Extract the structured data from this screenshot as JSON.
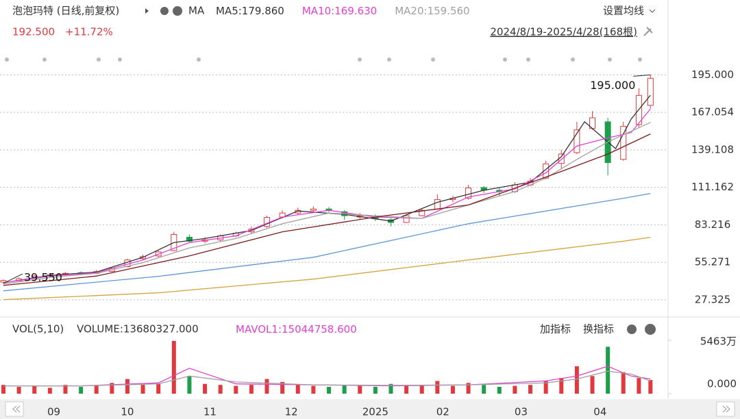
{
  "chart_data": {
    "type": "candlestick",
    "title": "泡泡玛特 (日线,前复权)",
    "ma_label": "MA",
    "price": "192.500",
    "change": "+11.72%",
    "range": "2024/8/19-2025/4/28(168根)",
    "settings": "设置均线",
    "xlim": [
      0,
      168
    ],
    "ylim": [
      15,
      210
    ],
    "yticks": [
      {
        "value": 195,
        "label": "195.000"
      },
      {
        "value": 167.054,
        "label": "167.054"
      },
      {
        "value": 139.108,
        "label": "139.108"
      },
      {
        "value": 111.162,
        "label": "111.162"
      },
      {
        "value": 83.216,
        "label": "83.216"
      },
      {
        "value": 55.271,
        "label": "55.271"
      },
      {
        "value": 27.325,
        "label": "27.325"
      }
    ],
    "xticks": [
      {
        "value": 13,
        "label": "09"
      },
      {
        "value": 32,
        "label": "10"
      },
      {
        "value": 53.3,
        "label": "11"
      },
      {
        "value": 74.3,
        "label": "12"
      },
      {
        "value": 96,
        "label": "2025"
      },
      {
        "value": 113.4,
        "label": "02"
      },
      {
        "value": 133.6,
        "label": "03"
      },
      {
        "value": 154,
        "label": "04"
      }
    ],
    "grid": true,
    "up_color": "#e0393e",
    "down_color": "#1e9e4a",
    "x": [
      0,
      4,
      8,
      12,
      16,
      20,
      24,
      28,
      32,
      36,
      40,
      44,
      48,
      52,
      56,
      60,
      64,
      68,
      72,
      76,
      80,
      84,
      88,
      92,
      96,
      100,
      104,
      108,
      112,
      116,
      120,
      124,
      128,
      132,
      136,
      140,
      144,
      148,
      152,
      156,
      160,
      164,
      167
    ],
    "candles": [
      [
        40.5,
        42.5,
        39.55,
        41.7
      ],
      [
        41.5,
        44,
        41,
        43
      ],
      [
        43.5,
        46,
        43,
        45
      ],
      [
        45,
        47,
        44.5,
        46
      ],
      [
        46.5,
        48,
        45.5,
        47
      ],
      [
        47.5,
        48.5,
        46,
        47
      ],
      [
        47,
        49.5,
        46.5,
        48.3
      ],
      [
        48.5,
        52,
        48,
        51
      ],
      [
        52,
        58,
        51.5,
        57
      ],
      [
        58,
        61,
        57,
        59.5
      ],
      [
        60,
        64,
        59,
        63
      ],
      [
        64,
        78,
        63.5,
        76
      ],
      [
        74,
        76,
        70,
        71
      ],
      [
        71,
        74,
        69.5,
        72
      ],
      [
        72,
        76,
        71,
        75
      ],
      [
        75,
        78,
        74,
        77
      ],
      [
        78,
        82,
        77,
        80
      ],
      [
        82,
        90,
        81,
        88.7
      ],
      [
        89,
        94,
        88,
        92
      ],
      [
        92,
        96,
        91,
        94
      ],
      [
        94,
        97,
        93,
        95
      ],
      [
        95,
        96.5,
        92.5,
        94
      ],
      [
        93,
        94,
        87,
        90
      ],
      [
        89,
        92,
        87.5,
        90
      ],
      [
        89,
        91,
        86,
        87.7
      ],
      [
        87,
        88,
        82,
        85
      ],
      [
        85,
        91,
        84.5,
        90
      ],
      [
        90,
        95,
        89.5,
        94
      ],
      [
        95,
        106,
        94.5,
        102
      ],
      [
        102,
        105,
        100,
        103
      ],
      [
        103,
        113,
        102,
        110.7
      ],
      [
        111,
        112,
        107,
        109
      ],
      [
        109,
        111,
        105,
        108
      ],
      [
        108,
        115,
        107,
        113
      ],
      [
        113,
        118,
        112,
        115.8
      ],
      [
        118,
        131,
        117,
        128.6
      ],
      [
        129,
        139,
        125,
        136
      ],
      [
        137,
        160,
        136,
        154
      ],
      [
        155,
        168,
        154,
        163
      ],
      [
        160,
        163,
        120,
        129.6
      ],
      [
        132,
        160,
        131,
        156.7
      ],
      [
        158,
        185,
        156,
        179.7
      ],
      [
        172.3,
        195,
        170,
        192.5
      ]
    ],
    "series": [
      {
        "name": "MA5:179.860",
        "color": "#333333",
        "x": [
          0,
          12,
          24,
          36,
          44,
          52,
          64,
          76,
          88,
          100,
          112,
          124,
          136,
          144,
          150,
          154,
          158,
          162,
          167
        ],
        "values": [
          40,
          45.5,
          48,
          59,
          70,
          73,
          79,
          93.5,
          91,
          86,
          100,
          109,
          115,
          134,
          160,
          150,
          140,
          162,
          179.86
        ]
      },
      {
        "name": "MA10:169.630",
        "color": "#e040d0",
        "x": [
          0,
          12,
          24,
          36,
          48,
          60,
          72,
          84,
          96,
          108,
          120,
          132,
          140,
          148,
          156,
          162,
          167
        ],
        "values": [
          40,
          45,
          47.5,
          57,
          70,
          75,
          89,
          94,
          89,
          88,
          104,
          110,
          122,
          142,
          148,
          152,
          169.63
        ]
      },
      {
        "name": "MA20:159.560",
        "color": "#a0a0a0",
        "x": [
          0,
          12,
          24,
          36,
          48,
          60,
          72,
          84,
          96,
          108,
          120,
          132,
          140,
          148,
          156,
          167
        ],
        "values": [
          39,
          44,
          47,
          55,
          66,
          73,
          84,
          92,
          90,
          88,
          98,
          108,
          118,
          132,
          145,
          159.56
        ]
      },
      {
        "color": "#7a1a1a",
        "x": [
          0,
          24,
          48,
          72,
          96,
          120,
          144,
          156,
          167
        ],
        "values": [
          38,
          45,
          60,
          78,
          89,
          98,
          123,
          136,
          151
        ]
      },
      {
        "color": "#5b95d6",
        "x": [
          0,
          40,
          80,
          120,
          160,
          167
        ],
        "values": [
          34,
          44.8,
          59,
          84,
          103,
          106.6
        ]
      },
      {
        "color": "#d4a43a",
        "x": [
          0,
          40,
          80,
          120,
          160,
          167
        ],
        "values": [
          27.4,
          32.5,
          42.7,
          57,
          71,
          73.9
        ]
      }
    ],
    "annotations": [
      {
        "text": "195.000",
        "x": 167,
        "y": 195
      },
      {
        "text": "39.550",
        "x": 0,
        "y": 39.55
      }
    ],
    "volume_panel": {
      "title": "VOL(5,10)",
      "volume": "VOLUME:13680327.000",
      "add": "加指标",
      "switch": "换指标",
      "ylim": [
        0,
        5463
      ],
      "yticks": [
        {
          "value": 5463,
          "label": "5463万"
        },
        {
          "value": 0,
          "label": "0.000"
        }
      ],
      "values": [
        900,
        700,
        800,
        600,
        900,
        700,
        800,
        1100,
        1500,
        900,
        1000,
        5400,
        1800,
        1000,
        900,
        800,
        900,
        1500,
        1200,
        900,
        800,
        700,
        900,
        800,
        700,
        1000,
        800,
        900,
        1300,
        800,
        1100,
        900,
        700,
        800,
        900,
        1300,
        1600,
        2800,
        1800,
        4800,
        2200,
        1600,
        1400
      ],
      "series": [
        {
          "name": "MAVOL1:15044758.600",
          "color": "#e040d0",
          "x": [
            0,
            20,
            40,
            48,
            60,
            80,
            100,
            120,
            140,
            148,
            156,
            162,
            167
          ],
          "values": [
            800,
            800,
            1100,
            2600,
            1000,
            900,
            800,
            900,
            1300,
            1800,
            2800,
            1800,
            1504
          ]
        },
        {
          "color": "#a0a0a0",
          "x": [
            0,
            20,
            40,
            48,
            60,
            80,
            100,
            120,
            140,
            148,
            156,
            162,
            167
          ],
          "values": [
            800,
            800,
            1000,
            1800,
            1200,
            900,
            850,
            900,
            1100,
            1500,
            2300,
            2000,
            1300
          ]
        }
      ]
    }
  }
}
